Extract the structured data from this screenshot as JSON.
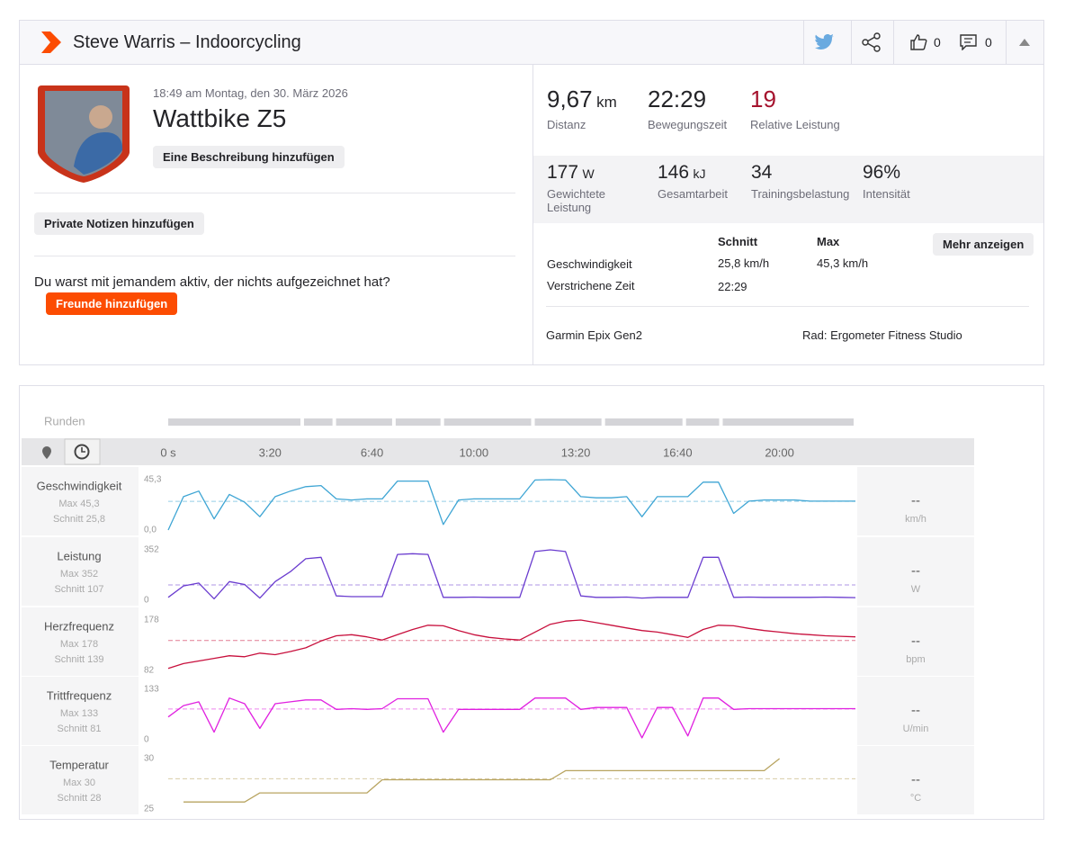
{
  "header": {
    "title": "Steve Warris – Indoorcycling",
    "likes": "0",
    "comments": "0"
  },
  "activity": {
    "date": "18:49 am Montag, den 30. März 2026",
    "name": "Wattbike Z5",
    "add_description": "Eine Beschreibung hinzufügen",
    "private_notes": "Private Notizen hinzufügen",
    "prompt": "Du warst mit jemandem aktiv, der nichts aufgezeichnet hat?",
    "add_friends": "Freunde hinzufügen"
  },
  "stats_primary": [
    {
      "value": "9,67",
      "unit": "km",
      "label": "Distanz"
    },
    {
      "value": "22:29",
      "label": "Bewegungszeit"
    },
    {
      "value": "19",
      "label": "Relative Leistung"
    }
  ],
  "stats_secondary": [
    {
      "value": "177",
      "unit": "W",
      "label": "Gewichtete Leistung"
    },
    {
      "value": "146",
      "unit": "kJ",
      "label": "Gesamtarbeit"
    },
    {
      "value": "34",
      "label": "Trainingsbelastung"
    },
    {
      "value": "96%",
      "label": "Intensität"
    }
  ],
  "table": {
    "headers": [
      "Schnitt",
      "Max"
    ],
    "rows": [
      [
        "Geschwindigkeit",
        "25,8 km/h",
        "45,3 km/h"
      ],
      [
        "Verstrichene Zeit",
        "22:29"
      ]
    ],
    "more": "Mehr anzeigen"
  },
  "device": "Garmin Epix Gen2",
  "bike": "Rad: Ergometer Fitness Studio",
  "chart": {
    "laps_label": "Runden",
    "laps": [
      0,
      263,
      326,
      443,
      538,
      716,
      854,
      1013,
      1085,
      1349
    ],
    "xlim": [
      0,
      1349
    ],
    "xticks": [
      {
        "value": 0,
        "label": "0 s"
      },
      {
        "value": 200,
        "label": "3:20"
      },
      {
        "value": 400,
        "label": "6:40"
      },
      {
        "value": 600,
        "label": "10:00"
      },
      {
        "value": 800,
        "label": "13:20"
      },
      {
        "value": 1000,
        "label": "16:40"
      },
      {
        "value": 1200,
        "label": "20:00"
      }
    ],
    "x": [
      0,
      30,
      60,
      90,
      120,
      150,
      180,
      210,
      240,
      270,
      300,
      330,
      360,
      390,
      420,
      450,
      480,
      510,
      540,
      570,
      600,
      630,
      660,
      690,
      720,
      750,
      780,
      810,
      840,
      870,
      900,
      930,
      960,
      990,
      1020,
      1050,
      1080,
      1110,
      1140,
      1170,
      1200,
      1230,
      1260,
      1290,
      1320,
      1349
    ],
    "streams": [
      {
        "name": "Geschwindigkeit",
        "max": {
          "value": 45.3,
          "label": "Max 45,3"
        },
        "avg": {
          "value": 25.8,
          "label": "Schnitt 25,8"
        },
        "current": "--",
        "unit": "km/h",
        "color": "#3ea5d4",
        "ylim": [
          0,
          45.3
        ],
        "yticks": [
          {
            "value": 0,
            "label": "0,0"
          },
          {
            "value": 45.3,
            "label": "45,3"
          }
        ],
        "values": [
          0,
          30,
          35,
          10,
          32,
          25,
          12,
          30,
          35,
          39,
          40,
          28,
          27,
          28,
          28,
          44,
          44,
          44,
          5,
          27,
          28,
          28,
          28,
          28,
          45,
          45.3,
          45,
          30,
          29,
          29,
          30,
          12,
          30,
          30,
          30,
          43,
          43,
          15,
          26,
          27,
          27,
          27,
          26,
          26,
          26,
          26
        ]
      },
      {
        "name": "Leistung",
        "max": {
          "value": 352,
          "label": "Max 352"
        },
        "avg": {
          "value": 107,
          "label": "Schnitt 107"
        },
        "current": "--",
        "unit": "W",
        "color": "#6a3ccf",
        "ylim": [
          0,
          352
        ],
        "yticks": [
          0,
          352
        ],
        "values": [
          20,
          100,
          120,
          10,
          130,
          110,
          15,
          130,
          200,
          290,
          300,
          30,
          25,
          25,
          25,
          320,
          325,
          320,
          20,
          20,
          22,
          20,
          20,
          20,
          340,
          352,
          340,
          30,
          20,
          20,
          22,
          15,
          20,
          20,
          20,
          300,
          300,
          20,
          22,
          20,
          20,
          20,
          20,
          22,
          20,
          18
        ]
      },
      {
        "name": "Herzfrequenz",
        "max": {
          "value": 178,
          "label": "Max 178"
        },
        "avg": {
          "value": 139,
          "label": "Schnitt 139"
        },
        "current": "--",
        "unit": "bpm",
        "color": "#c8103d",
        "ylim": [
          82,
          178
        ],
        "yticks": [
          82,
          178
        ],
        "values": [
          86,
          95,
          100,
          105,
          110,
          108,
          115,
          112,
          118,
          125,
          138,
          148,
          150,
          146,
          140,
          150,
          160,
          168,
          167,
          158,
          150,
          145,
          142,
          140,
          155,
          170,
          176,
          178,
          173,
          168,
          163,
          158,
          155,
          150,
          145,
          160,
          168,
          167,
          162,
          158,
          155,
          152,
          150,
          148,
          147,
          146
        ]
      },
      {
        "name": "Trittfrequenz",
        "max": {
          "value": 133,
          "label": "Max 133"
        },
        "avg": {
          "value": 81,
          "label": "Schnitt 81"
        },
        "current": "--",
        "unit": "U/min",
        "color": "#e020e0",
        "ylim": [
          0,
          133
        ],
        "yticks": [
          0,
          133
        ],
        "values": [
          60,
          90,
          100,
          20,
          110,
          95,
          30,
          95,
          100,
          105,
          105,
          80,
          82,
          80,
          82,
          108,
          108,
          108,
          20,
          80,
          80,
          80,
          80,
          80,
          110,
          110,
          110,
          80,
          85,
          85,
          85,
          5,
          85,
          85,
          10,
          110,
          110,
          80,
          82,
          82,
          82,
          82,
          82,
          82,
          82,
          82
        ]
      },
      {
        "name": "Temperatur",
        "max": {
          "value": 30,
          "label": "Max 30"
        },
        "avg": {
          "value": 28,
          "label": "Schnitt 28"
        },
        "current": "--",
        "unit": "°C",
        "color": "#b8a460",
        "ylim": [
          25,
          30
        ],
        "yticks": [
          25,
          30
        ],
        "values": [
          null,
          25.7,
          25.7,
          25.7,
          25.7,
          25.7,
          26.6,
          26.6,
          26.6,
          26.6,
          26.6,
          26.6,
          26.6,
          26.6,
          27.9,
          27.9,
          27.9,
          27.9,
          27.9,
          27.9,
          27.9,
          27.9,
          27.9,
          27.9,
          27.9,
          27.9,
          28.8,
          28.8,
          28.8,
          28.8,
          28.8,
          28.8,
          28.8,
          28.8,
          28.8,
          28.8,
          28.8,
          28.8,
          28.8,
          28.8,
          30,
          null,
          null,
          null,
          null,
          null
        ]
      }
    ]
  }
}
